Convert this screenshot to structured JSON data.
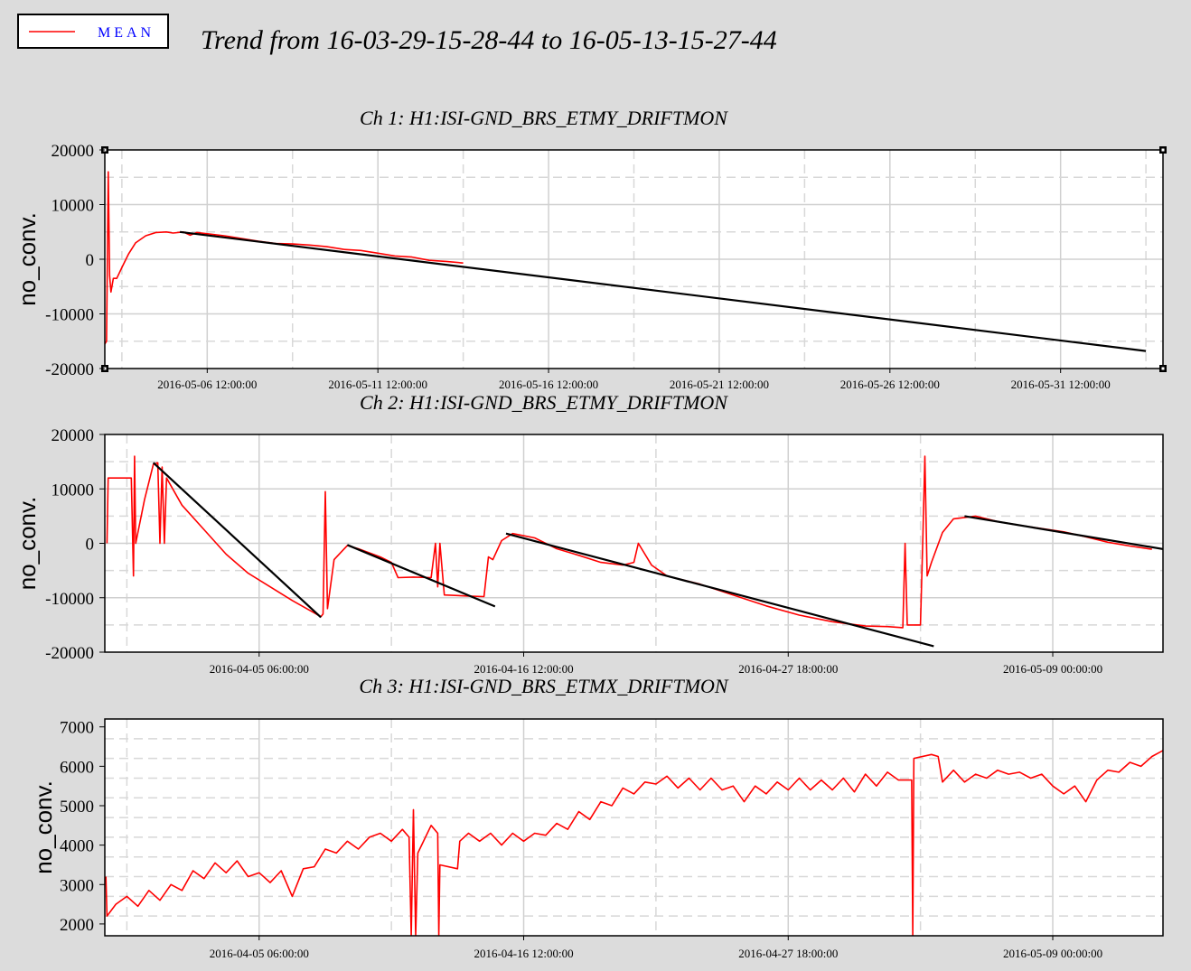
{
  "page": {
    "title": "Trend from 16-03-29-15-28-44 to 16-05-13-15-27-44",
    "legend": {
      "label": "MEAN",
      "line_color": "#ff0000",
      "text_color": "#0000ff"
    },
    "colors": {
      "background": "#dcdcdc",
      "plot_bg": "#ffffff",
      "data": "#ff0000",
      "fit": "#000000",
      "grid": "#c8c8c8"
    }
  },
  "chart_data": [
    {
      "type": "line",
      "title": "Ch 1: H1:ISI-GND_BRS_ETMY_DRIFTMON",
      "ylabel": "no_conv.",
      "xlabel": "",
      "ylim": [
        -20000,
        20000
      ],
      "yticks": [
        20000,
        10000,
        0,
        -10000,
        -20000
      ],
      "xlim": [
        0,
        31
      ],
      "xticks": [
        {
          "x": 3,
          "label": "2016-05-06 12:00:00"
        },
        {
          "x": 8,
          "label": "2016-05-11 12:00:00"
        },
        {
          "x": 13,
          "label": "2016-05-16 12:00:00"
        },
        {
          "x": 18,
          "label": "2016-05-21 12:00:00"
        },
        {
          "x": 23,
          "label": "2016-05-26 12:00:00"
        },
        {
          "x": 28,
          "label": "2016-05-31 12:00:00"
        }
      ],
      "grid": true,
      "corner_markers": true,
      "series": [
        {
          "role": "data",
          "points": [
            [
              0.0,
              -15500
            ],
            [
              0.05,
              -15000
            ],
            [
              0.1,
              16000
            ],
            [
              0.14,
              -3000
            ],
            [
              0.18,
              -6000
            ],
            [
              0.25,
              -3500
            ],
            [
              0.35,
              -3500
            ],
            [
              0.5,
              -1500
            ],
            [
              0.7,
              1000
            ],
            [
              0.9,
              3000
            ],
            [
              1.2,
              4300
            ],
            [
              1.5,
              4900
            ],
            [
              1.8,
              5000
            ],
            [
              2.0,
              4800
            ],
            [
              2.3,
              5000
            ],
            [
              2.5,
              4400
            ],
            [
              2.7,
              4900
            ],
            [
              3.5,
              4300
            ],
            [
              4.0,
              3800
            ],
            [
              4.5,
              3300
            ],
            [
              5.0,
              2900
            ],
            [
              5.5,
              2800
            ],
            [
              6.0,
              2600
            ],
            [
              6.5,
              2300
            ],
            [
              7.0,
              1800
            ],
            [
              7.5,
              1600
            ],
            [
              8.0,
              1100
            ],
            [
              8.5,
              600
            ],
            [
              9.0,
              400
            ],
            [
              9.5,
              -200
            ],
            [
              10.0,
              -400
            ],
            [
              10.5,
              -700
            ]
          ]
        },
        {
          "role": "fit",
          "points": [
            [
              2.2,
              5000
            ],
            [
              30.5,
              -16800
            ]
          ]
        }
      ]
    },
    {
      "type": "line",
      "title": "Ch 2: H1:ISI-GND_BRS_ETMY_DRIFTMON",
      "ylabel": "no_conv.",
      "xlabel": "",
      "ylim": [
        -20000,
        20000
      ],
      "yticks": [
        20000,
        10000,
        0,
        -10000,
        -20000
      ],
      "xlim": [
        0,
        48
      ],
      "xticks": [
        {
          "x": 7,
          "label": "2016-04-05 06:00:00"
        },
        {
          "x": 19,
          "label": "2016-04-16 12:00:00"
        },
        {
          "x": 31,
          "label": "2016-04-27 18:00:00"
        },
        {
          "x": 43,
          "label": "2016-05-09 00:00:00"
        }
      ],
      "grid": true,
      "corner_markers": false,
      "series": [
        {
          "role": "data",
          "points": [
            [
              0.1,
              0
            ],
            [
              0.15,
              12000
            ],
            [
              1.2,
              12000
            ],
            [
              1.3,
              -6000
            ],
            [
              1.35,
              16000
            ],
            [
              1.4,
              0
            ],
            [
              1.8,
              8000
            ],
            [
              2.2,
              14500
            ],
            [
              2.4,
              14800
            ],
            [
              2.5,
              0
            ],
            [
              2.6,
              14000
            ],
            [
              2.7,
              0
            ],
            [
              2.8,
              12000
            ],
            [
              3.5,
              7000
            ],
            [
              4.5,
              2500
            ],
            [
              5.5,
              -2000
            ],
            [
              6.5,
              -5500
            ],
            [
              7.5,
              -8000
            ],
            [
              8.5,
              -10500
            ],
            [
              9.5,
              -12800
            ],
            [
              9.8,
              -13500
            ],
            [
              9.9,
              -13000
            ],
            [
              10.0,
              9500
            ],
            [
              10.1,
              -12000
            ],
            [
              10.4,
              -3000
            ],
            [
              11.0,
              -400
            ],
            [
              11.5,
              -1000
            ],
            [
              12.5,
              -2500
            ],
            [
              13.0,
              -3500
            ],
            [
              13.3,
              -6300
            ],
            [
              14.0,
              -6200
            ],
            [
              14.8,
              -6300
            ],
            [
              15.0,
              0
            ],
            [
              15.1,
              -8000
            ],
            [
              15.2,
              0
            ],
            [
              15.4,
              -9500
            ],
            [
              16.5,
              -9700
            ],
            [
              17.2,
              -9800
            ],
            [
              17.4,
              -2500
            ],
            [
              17.6,
              -3000
            ],
            [
              18.0,
              500
            ],
            [
              18.5,
              1800
            ],
            [
              19.5,
              1000
            ],
            [
              20.5,
              -1000
            ],
            [
              21.5,
              -2200
            ],
            [
              22.5,
              -3500
            ],
            [
              23.5,
              -4000
            ],
            [
              24.0,
              -3500
            ],
            [
              24.2,
              0
            ],
            [
              24.8,
              -4000
            ],
            [
              25.5,
              -6000
            ],
            [
              27.0,
              -7500
            ],
            [
              28.5,
              -9500
            ],
            [
              30.0,
              -11500
            ],
            [
              31.5,
              -13200
            ],
            [
              33.0,
              -14400
            ],
            [
              34.5,
              -15200
            ],
            [
              35.5,
              -15300
            ],
            [
              36.2,
              -15500
            ],
            [
              36.3,
              0
            ],
            [
              36.4,
              -15000
            ],
            [
              37.0,
              -15000
            ],
            [
              37.1,
              0
            ],
            [
              37.2,
              16000
            ],
            [
              37.3,
              -6000
            ],
            [
              37.5,
              -3500
            ],
            [
              38.0,
              2000
            ],
            [
              38.5,
              4500
            ],
            [
              39.5,
              5000
            ],
            [
              40.5,
              4000
            ],
            [
              41.5,
              3300
            ],
            [
              42.5,
              2700
            ],
            [
              43.5,
              2100
            ],
            [
              44.5,
              1200
            ],
            [
              45.5,
              200
            ],
            [
              46.5,
              -500
            ],
            [
              47.5,
              -1100
            ]
          ]
        },
        {
          "role": "fit",
          "segments": [
            [
              [
                2.2,
                14800
              ],
              [
                9.8,
                -13600
              ]
            ],
            [
              [
                11.0,
                -300
              ],
              [
                17.7,
                -11600
              ]
            ],
            [
              [
                18.2,
                1800
              ],
              [
                37.6,
                -18900
              ]
            ],
            [
              [
                39.0,
                5000
              ],
              [
                48.8,
                -1600
              ]
            ]
          ]
        }
      ]
    },
    {
      "type": "line",
      "title": "Ch 3: H1:ISI-GND_BRS_ETMX_DRIFTMON",
      "ylabel": "no_conv.",
      "xlabel": "",
      "ylim": [
        1700,
        7200
      ],
      "yticks": [
        7000,
        6000,
        5000,
        4000,
        3000,
        2000
      ],
      "xlim": [
        0,
        48
      ],
      "xticks": [
        {
          "x": 7,
          "label": "2016-04-05 06:00:00"
        },
        {
          "x": 19,
          "label": "2016-04-16 12:00:00"
        },
        {
          "x": 31,
          "label": "2016-04-27 18:00:00"
        },
        {
          "x": 43,
          "label": "2016-05-09 00:00:00"
        }
      ],
      "grid": true,
      "corner_markers": false,
      "series": [
        {
          "role": "data",
          "points": [
            [
              0.05,
              3200
            ],
            [
              0.1,
              2200
            ],
            [
              0.5,
              2500
            ],
            [
              1.0,
              2700
            ],
            [
              1.5,
              2450
            ],
            [
              2.0,
              2850
            ],
            [
              2.5,
              2600
            ],
            [
              3.0,
              3000
            ],
            [
              3.5,
              2850
            ],
            [
              4.0,
              3350
            ],
            [
              4.5,
              3150
            ],
            [
              5.0,
              3550
            ],
            [
              5.5,
              3300
            ],
            [
              6.0,
              3600
            ],
            [
              6.5,
              3200
            ],
            [
              7.0,
              3300
            ],
            [
              7.5,
              3050
            ],
            [
              8.0,
              3350
            ],
            [
              8.5,
              2700
            ],
            [
              9.0,
              3400
            ],
            [
              9.5,
              3450
            ],
            [
              10.0,
              3900
            ],
            [
              10.5,
              3800
            ],
            [
              11.0,
              4100
            ],
            [
              11.5,
              3900
            ],
            [
              12.0,
              4200
            ],
            [
              12.5,
              4300
            ],
            [
              13.0,
              4100
            ],
            [
              13.5,
              4400
            ],
            [
              13.8,
              4200
            ],
            [
              13.9,
              1700
            ],
            [
              14.0,
              4900
            ],
            [
              14.1,
              1700
            ],
            [
              14.2,
              3800
            ],
            [
              14.8,
              4500
            ],
            [
              15.1,
              4300
            ],
            [
              15.15,
              1700
            ],
            [
              15.2,
              3500
            ],
            [
              16.0,
              3400
            ],
            [
              16.1,
              4100
            ],
            [
              16.5,
              4300
            ],
            [
              17.0,
              4100
            ],
            [
              17.5,
              4300
            ],
            [
              18.0,
              4000
            ],
            [
              18.5,
              4300
            ],
            [
              19.0,
              4100
            ],
            [
              19.5,
              4300
            ],
            [
              20.0,
              4250
            ],
            [
              20.5,
              4550
            ],
            [
              21.0,
              4400
            ],
            [
              21.5,
              4850
            ],
            [
              22.0,
              4650
            ],
            [
              22.5,
              5100
            ],
            [
              23.0,
              5000
            ],
            [
              23.5,
              5450
            ],
            [
              24.0,
              5300
            ],
            [
              24.5,
              5600
            ],
            [
              25.0,
              5550
            ],
            [
              25.5,
              5750
            ],
            [
              26.0,
              5450
            ],
            [
              26.5,
              5700
            ],
            [
              27.0,
              5400
            ],
            [
              27.5,
              5700
            ],
            [
              28.0,
              5400
            ],
            [
              28.5,
              5500
            ],
            [
              29.0,
              5100
            ],
            [
              29.5,
              5500
            ],
            [
              30.0,
              5300
            ],
            [
              30.5,
              5600
            ],
            [
              31.0,
              5400
            ],
            [
              31.5,
              5700
            ],
            [
              32.0,
              5400
            ],
            [
              32.5,
              5650
            ],
            [
              33.0,
              5400
            ],
            [
              33.5,
              5700
            ],
            [
              34.0,
              5350
            ],
            [
              34.5,
              5800
            ],
            [
              35.0,
              5500
            ],
            [
              35.5,
              5850
            ],
            [
              36.0,
              5650
            ],
            [
              36.6,
              5650
            ],
            [
              36.65,
              1700
            ],
            [
              36.7,
              6200
            ],
            [
              37.5,
              6300
            ],
            [
              37.8,
              6250
            ],
            [
              38.0,
              5600
            ],
            [
              38.5,
              5900
            ],
            [
              39.0,
              5600
            ],
            [
              39.5,
              5800
            ],
            [
              40.0,
              5700
            ],
            [
              40.5,
              5900
            ],
            [
              41.0,
              5800
            ],
            [
              41.5,
              5850
            ],
            [
              42.0,
              5700
            ],
            [
              42.5,
              5800
            ],
            [
              43.0,
              5500
            ],
            [
              43.5,
              5300
            ],
            [
              44.0,
              5500
            ],
            [
              44.5,
              5100
            ],
            [
              45.0,
              5650
            ],
            [
              45.5,
              5900
            ],
            [
              46.0,
              5850
            ],
            [
              46.5,
              6100
            ],
            [
              47.0,
              6000
            ],
            [
              47.5,
              6250
            ],
            [
              48.0,
              6400
            ]
          ]
        }
      ]
    }
  ]
}
